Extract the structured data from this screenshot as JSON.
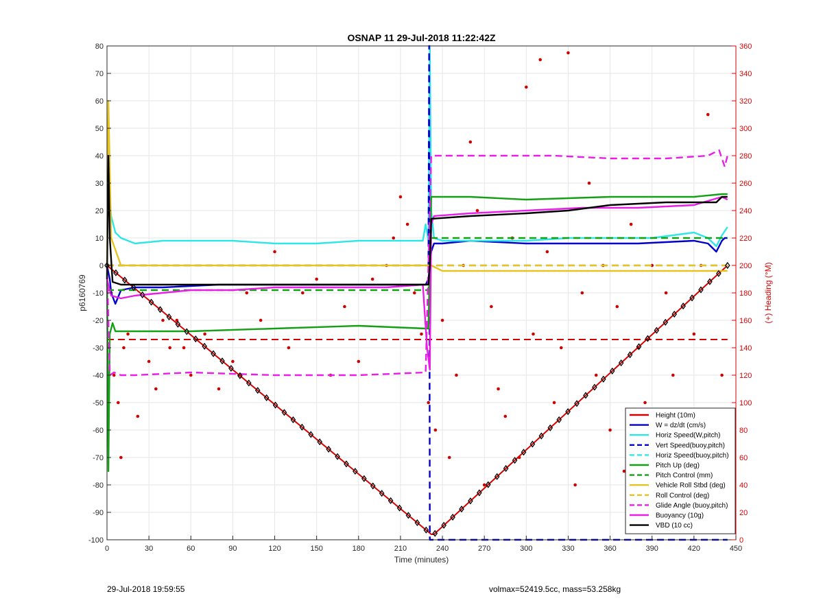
{
  "chart_data": {
    "type": "line",
    "title": "OSNAP 11 29-Jul-2018 11:22:42Z",
    "xlabel": "Time (minutes)",
    "ylabel_left": "p6160769",
    "ylabel_right": "(+) Heading (°M)",
    "xlim": [
      0,
      450
    ],
    "ylim_left": [
      -100,
      80
    ],
    "ylim_right": [
      0,
      360
    ],
    "x_ticks": [
      0,
      30,
      60,
      90,
      120,
      150,
      180,
      210,
      240,
      270,
      300,
      330,
      360,
      390,
      420,
      450
    ],
    "y_left_ticks": [
      -100,
      -90,
      -80,
      -70,
      -60,
      -50,
      -40,
      -30,
      -20,
      -10,
      0,
      10,
      20,
      30,
      40,
      50,
      60,
      70,
      80
    ],
    "y_right_ticks": [
      0,
      20,
      40,
      60,
      80,
      100,
      120,
      140,
      160,
      180,
      200,
      220,
      240,
      260,
      280,
      300,
      320,
      340,
      360
    ],
    "grid": true,
    "legend_position": "bottom-right",
    "colors": {
      "red": "#d40000",
      "blue": "#0000c8",
      "cyan": "#2ee6e6",
      "green": "#14a014",
      "yellow": "#e6c31e",
      "magenta": "#e61ee6",
      "black": "#000000",
      "right_axis": "#d40000"
    },
    "series": [
      {
        "name": "Height (10m)",
        "color": "red",
        "dash": false,
        "x": [
          0,
          232,
          234,
          444
        ],
        "y": [
          0,
          -98,
          -98,
          0
        ]
      },
      {
        "name": "W = dz/dt (cm/s)",
        "color": "blue",
        "dash": false,
        "x": [
          0,
          2,
          3,
          6,
          10,
          20,
          40,
          80,
          120,
          160,
          200,
          228,
          230,
          232,
          234,
          240,
          260,
          300,
          340,
          380,
          420,
          430,
          436,
          440,
          442,
          444
        ],
        "y": [
          0,
          -5,
          -10,
          -14,
          -9,
          -8,
          -8,
          -7,
          -7,
          -7,
          -7,
          -7,
          -5,
          5,
          8,
          8,
          9,
          8,
          8,
          8,
          9,
          8,
          5,
          9,
          10,
          10
        ]
      },
      {
        "name": "Horiz Speed(W,pitch)",
        "color": "cyan",
        "dash": false,
        "x": [
          0,
          1,
          3,
          6,
          10,
          20,
          40,
          60,
          90,
          120,
          150,
          180,
          210,
          226,
          228,
          230,
          231,
          232,
          234,
          240,
          270,
          300,
          330,
          360,
          390,
          420,
          430,
          436,
          440,
          444
        ],
        "y": [
          10,
          30,
          18,
          12,
          10,
          8,
          9,
          9,
          9,
          8,
          8,
          9,
          9,
          9,
          15,
          9,
          80,
          20,
          10,
          9,
          9,
          9,
          10,
          10,
          10,
          12,
          10,
          7,
          11,
          14
        ]
      },
      {
        "name": "Vert Speed(buoy,pitch)",
        "color": "blue",
        "dash": true,
        "x": [
          0,
          230,
          230.5,
          231,
          444
        ],
        "y": [
          0,
          0,
          80,
          -100,
          -100
        ]
      },
      {
        "name": "Horiz Speed(buoy,pitch)",
        "color": "cyan",
        "dash": true,
        "x": [
          0,
          444
        ],
        "y": [
          0,
          0
        ]
      },
      {
        "name": "Pitch Up (deg)",
        "color": "green",
        "dash": false,
        "x": [
          0,
          1,
          2,
          4,
          6,
          10,
          20,
          60,
          120,
          180,
          228,
          230,
          232,
          234,
          260,
          300,
          360,
          420,
          440,
          444
        ],
        "y": [
          0,
          -75,
          -25,
          -21,
          -24,
          -24,
          -24,
          -24,
          -23,
          -22,
          -23,
          -23,
          25,
          25,
          25,
          24,
          25,
          25,
          26,
          26
        ]
      },
      {
        "name": "Pitch Control (mm)",
        "color": "green",
        "dash": true,
        "x": [
          0,
          5,
          10,
          230,
          232,
          444
        ],
        "y": [
          -9,
          -9,
          -9,
          -9,
          10,
          10
        ]
      },
      {
        "name": "Vehicle Roll Stbd (deg)",
        "color": "yellow",
        "dash": false,
        "x": [
          0,
          1,
          3,
          10,
          30,
          60,
          90,
          120,
          150,
          180,
          210,
          228,
          232,
          240,
          270,
          300,
          330,
          360,
          390,
          420,
          444
        ],
        "y": [
          0,
          60,
          10,
          0,
          0,
          0,
          0,
          0,
          0,
          0,
          0,
          0,
          0,
          -2,
          -2,
          -2,
          -2,
          -2,
          -2,
          -2,
          -2
        ]
      },
      {
        "name": "Roll Control (deg)",
        "color": "yellow",
        "dash": true,
        "x": [
          0,
          444
        ],
        "y": [
          0,
          0
        ]
      },
      {
        "name": "Glide Angle (buoy,pitch)",
        "color": "magenta",
        "dash": true,
        "x": [
          0,
          2,
          5,
          10,
          20,
          60,
          120,
          180,
          228,
          232,
          240,
          280,
          320,
          360,
          400,
          430,
          438,
          442,
          444
        ],
        "y": [
          0,
          -40,
          -39,
          -40,
          -40,
          -39,
          -40,
          -40,
          -39,
          40,
          40,
          40,
          40,
          39,
          39,
          40,
          42,
          36,
          40
        ]
      },
      {
        "name": "Buoyancy (10g)",
        "color": "magenta",
        "dash": false,
        "x": [
          0,
          3,
          10,
          20,
          40,
          60,
          90,
          120,
          160,
          200,
          226,
          229,
          231,
          232,
          234,
          260,
          300,
          340,
          380,
          420,
          440,
          444
        ],
        "y": [
          -5,
          -11,
          -12,
          -11,
          -10,
          -9,
          -9,
          -8,
          -8,
          -8,
          -7,
          -30,
          -38,
          15,
          18,
          19,
          20,
          21,
          21,
          22,
          25,
          24
        ]
      },
      {
        "name": "VBD (10 cc)",
        "color": "black",
        "dash": false,
        "x": [
          0,
          1,
          2,
          4,
          10,
          230,
          231,
          232,
          260,
          300,
          330,
          360,
          400,
          430,
          436,
          440,
          444
        ],
        "y": [
          -5,
          40,
          10,
          -6,
          -7,
          -7,
          0,
          17,
          18,
          19,
          20,
          22,
          23,
          23,
          23,
          25,
          25
        ]
      }
    ],
    "extra_series": [
      {
        "name": "Heading marker line",
        "color": "red",
        "dash": true,
        "axis": "right",
        "x": [
          0,
          444
        ],
        "y": [
          146,
          146
        ]
      }
    ],
    "heading_points": {
      "axis": "right",
      "x": [
        1,
        2,
        3,
        5,
        8,
        10,
        12,
        15,
        22,
        30,
        35,
        40,
        45,
        50,
        55,
        60,
        70,
        80,
        90,
        95,
        100,
        110,
        120,
        130,
        140,
        150,
        160,
        170,
        180,
        190,
        200,
        205,
        210,
        215,
        220,
        225,
        230,
        235,
        240,
        245,
        250,
        255,
        260,
        265,
        270,
        275,
        280,
        285,
        290,
        295,
        300,
        305,
        310,
        315,
        320,
        325,
        330,
        335,
        340,
        345,
        350,
        355,
        360,
        365,
        370,
        375,
        380,
        385,
        390,
        395,
        400,
        405,
        410,
        415,
        420,
        425,
        430,
        435,
        440
      ],
      "y": [
        300,
        240,
        180,
        120,
        100,
        60,
        140,
        150,
        90,
        130,
        110,
        160,
        140,
        160,
        140,
        120,
        150,
        110,
        130,
        120,
        180,
        160,
        210,
        140,
        180,
        190,
        120,
        170,
        130,
        190,
        200,
        220,
        250,
        230,
        180,
        150,
        100,
        80,
        160,
        60,
        120,
        200,
        290,
        240,
        40,
        170,
        110,
        90,
        220,
        60,
        330,
        150,
        350,
        210,
        100,
        140,
        355,
        40,
        180,
        260,
        120,
        200,
        80,
        170,
        50,
        230,
        140,
        100,
        200,
        60,
        180,
        120,
        90,
        70,
        150,
        200,
        310,
        40,
        120
      ]
    }
  },
  "footer": {
    "left": "29-Jul-2018 19:59:55",
    "right": "volmax=52419.5cc, mass=53.258kg"
  }
}
